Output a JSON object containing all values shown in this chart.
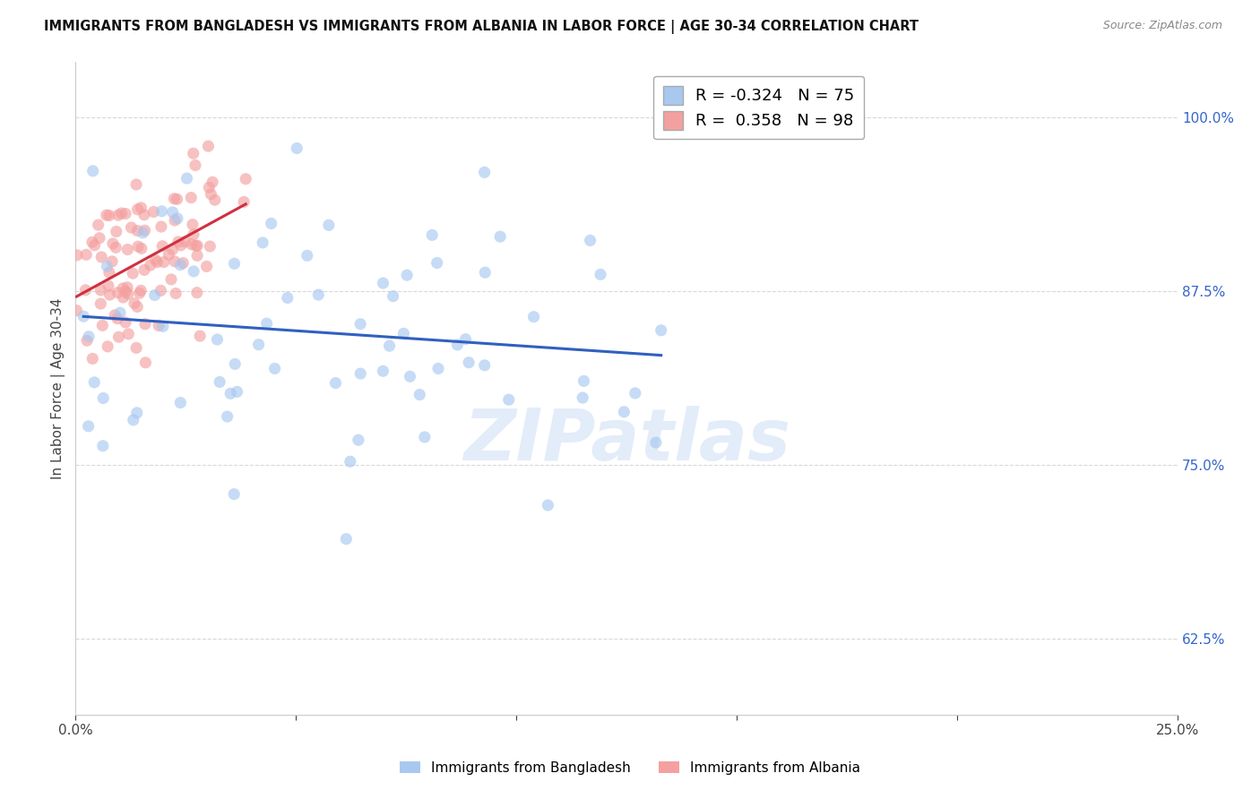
{
  "title": "IMMIGRANTS FROM BANGLADESH VS IMMIGRANTS FROM ALBANIA IN LABOR FORCE | AGE 30-34 CORRELATION CHART",
  "source": "Source: ZipAtlas.com",
  "ylabel": "In Labor Force | Age 30-34",
  "xlim": [
    0.0,
    0.25
  ],
  "ylim": [
    0.57,
    1.04
  ],
  "ytick_vals": [
    0.625,
    0.75,
    0.875,
    1.0
  ],
  "yticklabels": [
    "62.5%",
    "75.0%",
    "87.5%",
    "100.0%"
  ],
  "xtick_vals": [
    0.0,
    0.05,
    0.1,
    0.15,
    0.2,
    0.25
  ],
  "xticklabels": [
    "0.0%",
    "",
    "",
    "",
    "",
    "25.0%"
  ],
  "bangladesh_color": "#a8c8f0",
  "albania_color": "#f4a0a0",
  "bangladesh_line_color": "#3060c0",
  "albania_line_color": "#d03040",
  "R_bangladesh": -0.324,
  "N_bangladesh": 75,
  "R_albania": 0.358,
  "N_albania": 98,
  "watermark": "ZIPatlas",
  "legend_label_bangladesh": "Immigrants from Bangladesh",
  "legend_label_albania": "Immigrants from Albania",
  "background_color": "#ffffff",
  "grid_color": "#d8d8d8"
}
